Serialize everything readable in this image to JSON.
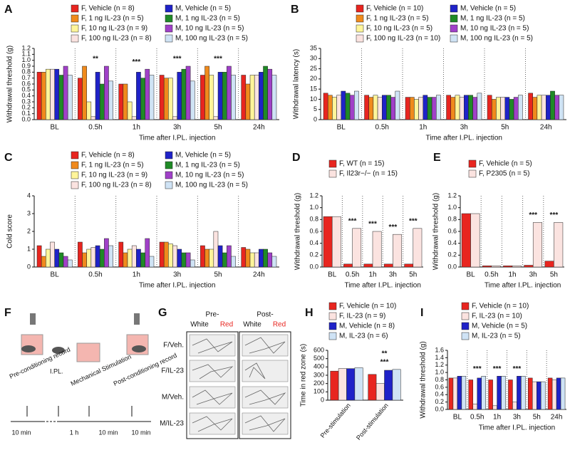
{
  "chart_data": [
    {
      "type": "bar",
      "label": "A",
      "ylabel": "Withdrawal threshold (g)",
      "xlabel": "Time after I.PL. injection",
      "dividers": true,
      "categories": [
        "BL",
        "0.5h",
        "1h",
        "3h",
        "5h",
        "24h"
      ],
      "ylim": [
        0,
        1.2
      ],
      "yticks": [
        {
          "value": 0,
          "label": "0.0"
        },
        {
          "value": 0.1,
          "label": "0.1"
        },
        {
          "value": 0.2,
          "label": "0.2"
        },
        {
          "value": 0.3,
          "label": "0.3"
        },
        {
          "value": 0.4,
          "label": "0.4"
        },
        {
          "value": 0.5,
          "label": "0.5"
        },
        {
          "value": 0.6,
          "label": "0.6"
        },
        {
          "value": 0.7,
          "label": "0.7"
        },
        {
          "value": 0.8,
          "label": "0.8"
        },
        {
          "value": 0.9,
          "label": "0.9"
        },
        {
          "value": 1.0,
          "label": "1.0"
        },
        {
          "value": 1.1,
          "label": "1.1"
        },
        {
          "value": 1.2,
          "label": "1.2"
        }
      ],
      "series": [
        {
          "name": "F, Vehicle (n = 8)",
          "color": "#e8251f",
          "values": [
            0.8,
            0.7,
            0.6,
            0.75,
            0.75,
            0.75
          ]
        },
        {
          "name": "F, 1 ng IL-23 (n = 5)",
          "color": "#f08a1c",
          "values": [
            0.8,
            0.9,
            0.6,
            0.7,
            0.9,
            0.6
          ]
        },
        {
          "name": "F, 10 ng IL-23 (n = 9)",
          "color": "#fff59a",
          "values": [
            0.85,
            0.3,
            0.3,
            0.7,
            0.75,
            0.75
          ]
        },
        {
          "name": "F, 100 ng IL-23 (n = 8)",
          "color": "#fbe3e0",
          "values": [
            0.85,
            0.05,
            0.05,
            0.05,
            0.05,
            0.75
          ]
        },
        {
          "name": "M, Vehicle (n = 5)",
          "color": "#1f22c8",
          "values": [
            0.85,
            0.8,
            0.8,
            0.8,
            0.8,
            0.8
          ]
        },
        {
          "name": "M, 1 ng IL-23 (n = 5)",
          "color": "#1f8a26",
          "values": [
            0.75,
            0.6,
            0.7,
            0.85,
            0.8,
            0.9
          ]
        },
        {
          "name": "M, 10 ng IL-23 (n = 5)",
          "color": "#a040c8",
          "values": [
            0.9,
            0.9,
            0.85,
            0.9,
            0.9,
            0.85
          ]
        },
        {
          "name": "M, 100 ng IL-23 (n = 5)",
          "color": "#cfe3f5",
          "values": [
            0.75,
            0.65,
            0.75,
            0.65,
            0.75,
            0.75
          ]
        }
      ],
      "annotations": [
        {
          "text": "**",
          "category": 1
        },
        {
          "text": "***",
          "category": 2
        },
        {
          "text": "***",
          "category": 3
        },
        {
          "text": "***",
          "category": 4
        }
      ]
    },
    {
      "type": "bar",
      "label": "B",
      "ylabel": "Withdrawal latency (s)",
      "xlabel": "Time after I.PL. injection",
      "dividers": true,
      "categories": [
        "BL",
        "0.5h",
        "1h",
        "3h",
        "5h",
        "24h"
      ],
      "ylim": [
        0,
        35
      ],
      "yticks": [
        0,
        5,
        10,
        15,
        20,
        25,
        30,
        35
      ],
      "series": [
        {
          "name": "F, Vehicle (n = 10)",
          "color": "#e8251f",
          "values": [
            13,
            12,
            11,
            12,
            12,
            13
          ]
        },
        {
          "name": "F, 1 ng IL-23 (n = 5)",
          "color": "#f08a1c",
          "values": [
            12,
            11,
            11,
            11,
            10,
            11
          ]
        },
        {
          "name": "F, 10 ng IL-23 (n = 5)",
          "color": "#fff59a",
          "values": [
            11,
            12,
            10,
            12,
            11,
            12
          ]
        },
        {
          "name": "F, 100 ng IL-23 (n = 10)",
          "color": "#fbe3e0",
          "values": [
            12,
            11,
            11,
            11,
            11,
            12
          ]
        },
        {
          "name": "M, Vehicle (n = 5)",
          "color": "#1f22c8",
          "values": [
            14,
            12,
            12,
            12,
            11,
            12
          ]
        },
        {
          "name": "M, 1 ng IL-23 (n = 5)",
          "color": "#1f8a26",
          "values": [
            13,
            12,
            11,
            12,
            10,
            14
          ]
        },
        {
          "name": "M, 10 ng IL-23 (n = 5)",
          "color": "#a040c8",
          "values": [
            12,
            11,
            11,
            11,
            11,
            12
          ]
        },
        {
          "name": "M, 100 ng IL-23 (n = 5)",
          "color": "#cfe3f5",
          "values": [
            14,
            14,
            12,
            13,
            12,
            12
          ]
        }
      ]
    },
    {
      "type": "bar",
      "label": "C",
      "ylabel": "Cold score",
      "xlabel": "Time after I.PL. injection",
      "dividers": true,
      "categories": [
        "BL",
        "0.5h",
        "1h",
        "3h",
        "5h",
        "24h"
      ],
      "ylim": [
        0,
        4
      ],
      "yticks": [
        0,
        1,
        2,
        3,
        4
      ],
      "series": [
        {
          "name": "F, Vehicle (n = 8)",
          "color": "#e8251f",
          "values": [
            1.2,
            1.4,
            1.4,
            1.4,
            1.2,
            1.1
          ]
        },
        {
          "name": "F, 1 ng IL-23 (n = 5)",
          "color": "#f08a1c",
          "values": [
            0.6,
            0.8,
            0.8,
            1.4,
            1.0,
            1.0
          ]
        },
        {
          "name": "F, 10 ng IL-23 (n = 9)",
          "color": "#fff59a",
          "values": [
            1.0,
            1.0,
            1.0,
            1.3,
            1.0,
            0.8
          ]
        },
        {
          "name": "F, 100 ng IL-23 (n = 8)",
          "color": "#fbe3e0",
          "values": [
            1.4,
            1.1,
            1.2,
            1.2,
            2.0,
            0.8
          ]
        },
        {
          "name": "M, Vehicle (n = 5)",
          "color": "#1f22c8",
          "values": [
            1.0,
            1.2,
            1.0,
            1.0,
            1.2,
            1.0
          ]
        },
        {
          "name": "M, 1 ng IL-23 (n = 5)",
          "color": "#1f8a26",
          "values": [
            0.8,
            1.0,
            0.8,
            0.8,
            0.8,
            1.0
          ]
        },
        {
          "name": "M, 10 ng IL-23 (n = 5)",
          "color": "#a040c8",
          "values": [
            0.6,
            1.6,
            1.6,
            0.8,
            1.2,
            0.8
          ]
        },
        {
          "name": "M, 100 ng IL-23 (n = 5)",
          "color": "#cfe3f5",
          "values": [
            0.4,
            1.2,
            0.6,
            0.4,
            0.6,
            0.6
          ]
        }
      ]
    },
    {
      "type": "bar",
      "label": "D",
      "ylabel": "Withdrawal threshold (g)",
      "xlabel": "Time after I.PL. injection",
      "dividers": true,
      "categories": [
        "BL",
        "0.5h",
        "1h",
        "3h",
        "5h"
      ],
      "ylim": [
        0,
        1.2
      ],
      "yticks": [
        {
          "value": 0,
          "label": "0.0"
        },
        {
          "value": 0.2,
          "label": "0.2"
        },
        {
          "value": 0.4,
          "label": "0.4"
        },
        {
          "value": 0.6,
          "label": "0.6"
        },
        {
          "value": 0.8,
          "label": "0.8"
        },
        {
          "value": 1.0,
          "label": "1.0"
        },
        {
          "value": 1.2,
          "label": "1.2"
        }
      ],
      "series": [
        {
          "name": "F, WT (n = 15)",
          "color": "#e8251f",
          "values": [
            0.85,
            0.05,
            0.05,
            0.05,
            0.05
          ]
        },
        {
          "name": "F, Il23r−/− (n = 15)",
          "color": "#fbe3e0",
          "values": [
            0.85,
            0.65,
            0.6,
            0.55,
            0.65
          ]
        }
      ],
      "annotations": [
        {
          "text": "***",
          "category": 1
        },
        {
          "text": "***",
          "category": 2
        },
        {
          "text": "***",
          "category": 3
        },
        {
          "text": "***",
          "category": 4
        }
      ]
    },
    {
      "type": "bar",
      "label": "E",
      "ylabel": "Withdrawal threshold (g)",
      "xlabel": "Time after I.PL. injection",
      "dividers": true,
      "categories": [
        "BL",
        "0.5h",
        "1h",
        "3h",
        "5h"
      ],
      "ylim": [
        0,
        1.2
      ],
      "yticks": [
        {
          "value": 0,
          "label": "0.0"
        },
        {
          "value": 0.2,
          "label": "0.2"
        },
        {
          "value": 0.4,
          "label": "0.4"
        },
        {
          "value": 0.6,
          "label": "0.6"
        },
        {
          "value": 0.8,
          "label": "0.8"
        },
        {
          "value": 1.0,
          "label": "1.0"
        },
        {
          "value": 1.2,
          "label": "1.2"
        }
      ],
      "series": [
        {
          "name": "F, Vehicle  (n = 5)",
          "color": "#e8251f",
          "values": [
            0.9,
            0.02,
            0.02,
            0.03,
            0.1
          ]
        },
        {
          "name": "F, P2305 (n = 5)",
          "color": "#fbe3e0",
          "values": [
            0.9,
            0.02,
            0.02,
            0.75,
            0.75
          ]
        }
      ],
      "annotations": [
        {
          "text": "***",
          "category": 3
        },
        {
          "text": "***",
          "category": 4
        }
      ]
    },
    {
      "type": "bar",
      "label": "H",
      "ylabel": "Time in red zone (s)",
      "dividers": false,
      "categories": [
        "Pre-stimulation",
        "Post-stimulation"
      ],
      "ylim": [
        0,
        600
      ],
      "yticks": [
        0,
        100,
        200,
        300,
        400,
        500,
        600
      ],
      "series": [
        {
          "name": "F, Vehicle (n = 10)",
          "color": "#e8251f",
          "values": [
            350,
            310
          ]
        },
        {
          "name": "F, IL-23 (n = 9)",
          "color": "#fbe3e0",
          "values": [
            380,
            200
          ]
        },
        {
          "name": "M, Vehicle (n = 8)",
          "color": "#1f22c8",
          "values": [
            380,
            360
          ]
        },
        {
          "name": "M, IL-23 (n = 6)",
          "color": "#cfe3f5",
          "values": [
            390,
            370
          ]
        }
      ],
      "annotations": [
        {
          "text": "***",
          "category": 1
        },
        {
          "text": "**",
          "category": 1
        }
      ]
    },
    {
      "type": "bar",
      "label": "I",
      "ylabel": "Withdrawal threshold (g)",
      "xlabel": "Time after I.PL. injection",
      "dividers": true,
      "categories": [
        "BL",
        "0.5h",
        "1h",
        "3h",
        "5h",
        "24h"
      ],
      "ylim": [
        0,
        1.6
      ],
      "yticks": [
        {
          "value": 0,
          "label": "0.0"
        },
        {
          "value": 0.2,
          "label": "0.2"
        },
        {
          "value": 0.4,
          "label": "0.4"
        },
        {
          "value": 0.6,
          "label": "0.6"
        },
        {
          "value": 0.8,
          "label": "0.8"
        },
        {
          "value": 1.0,
          "label": "1.0"
        },
        {
          "value": 1.2,
          "label": "1.2"
        },
        {
          "value": 1.4,
          "label": "1.4"
        },
        {
          "value": 1.6,
          "label": "1.6"
        }
      ],
      "series": [
        {
          "name": "F, Vehicle (n = 10)",
          "color": "#e8251f",
          "values": [
            0.85,
            0.8,
            0.8,
            0.8,
            0.85,
            0.85
          ]
        },
        {
          "name": "F, IL-23 (n = 10)",
          "color": "#fbe3e0",
          "values": [
            0.85,
            0.15,
            0.1,
            0.2,
            0.75,
            0.8
          ]
        },
        {
          "name": "M, Vehicle (n = 5)",
          "color": "#1f22c8",
          "values": [
            0.9,
            0.85,
            0.9,
            0.9,
            0.75,
            0.85
          ]
        },
        {
          "name": "M, IL-23 (n = 5)",
          "color": "#cfe3f5",
          "values": [
            0.9,
            0.9,
            0.9,
            0.9,
            0.75,
            0.85
          ]
        }
      ],
      "annotations": [
        {
          "text": "***",
          "category": 1
        },
        {
          "text": "***",
          "category": 2
        },
        {
          "text": "***",
          "category": 3
        }
      ]
    }
  ],
  "panel_f": {
    "label": "F",
    "steps": [
      "Pre-conditioning record",
      "I.PL.",
      "Mechanical Stimulation",
      "Post-conditioning record"
    ],
    "times": [
      "10 min",
      "1 h",
      "10 min",
      "10 min"
    ]
  },
  "panel_g": {
    "label": "G",
    "columns": [
      {
        "title": "Pre-",
        "zones": [
          "White",
          "Red"
        ]
      },
      {
        "title": "Post-",
        "zones": [
          "White",
          "Red"
        ]
      }
    ],
    "rows": [
      "F/Veh.",
      "F/IL-23",
      "M/Veh.",
      "M/IL-23"
    ]
  }
}
